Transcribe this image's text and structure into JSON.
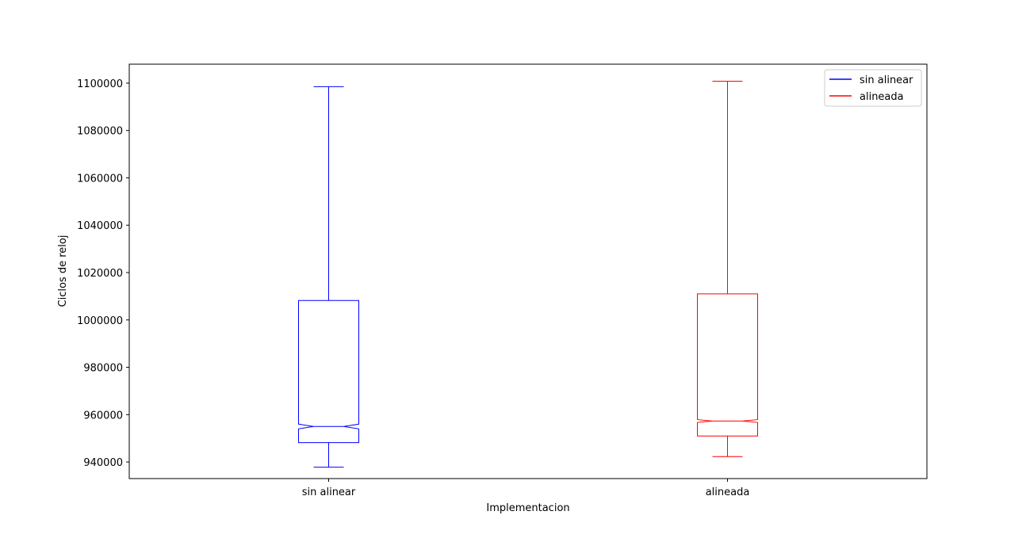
{
  "chart_data": {
    "type": "box",
    "title": "",
    "xlabel": "Implementacion",
    "ylabel": "Ciclos de reloj",
    "ylim": [
      933000,
      1108000
    ],
    "yticks": [
      940000,
      960000,
      980000,
      1000000,
      1020000,
      1040000,
      1060000,
      1080000,
      1100000
    ],
    "ytick_labels": [
      "940000",
      "960000",
      "980000",
      "1000000",
      "1020000",
      "1040000",
      "1060000",
      "1080000",
      "1100000"
    ],
    "categories": [
      "sin alinear",
      "alineada"
    ],
    "series": [
      {
        "name": "sin alinear",
        "color": "#0000ff",
        "whisker_low": 937800,
        "q1": 948200,
        "median": 955000,
        "q3": 1008200,
        "whisker_high": 1098500,
        "notch_low": 954000,
        "notch_high": 956000
      },
      {
        "name": "alineada",
        "color": "#ff0000",
        "whisker_low": 942300,
        "q1": 951000,
        "median": 957300,
        "q3": 1011000,
        "whisker_high": 1100800,
        "notch_low": 956700,
        "notch_high": 957900
      }
    ],
    "grid": false,
    "legend_position": "top-right"
  }
}
